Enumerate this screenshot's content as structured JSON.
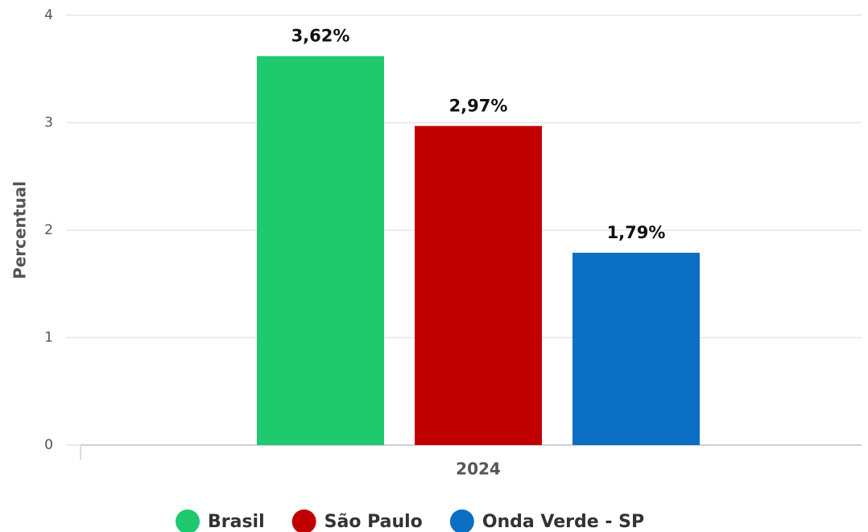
{
  "chart_data": {
    "type": "bar",
    "y_label": "Percentual",
    "categories": [
      "2024"
    ],
    "series": [
      {
        "name": "Brasil",
        "color": "#1fc96e",
        "values": [
          3.62
        ],
        "value_labels": [
          "3,62%"
        ]
      },
      {
        "name": "São Paulo",
        "color": "#c00000",
        "values": [
          2.97
        ],
        "value_labels": [
          "2,97%"
        ]
      },
      {
        "name": "Onda Verde - SP",
        "color": "#0a6fc2",
        "values": [
          1.79
        ],
        "value_labels": [
          "1,79%"
        ]
      }
    ],
    "ylim": [
      0,
      4
    ],
    "yticks": [
      0,
      1,
      2,
      3,
      4
    ],
    "grid": true,
    "legend": "bottom"
  }
}
